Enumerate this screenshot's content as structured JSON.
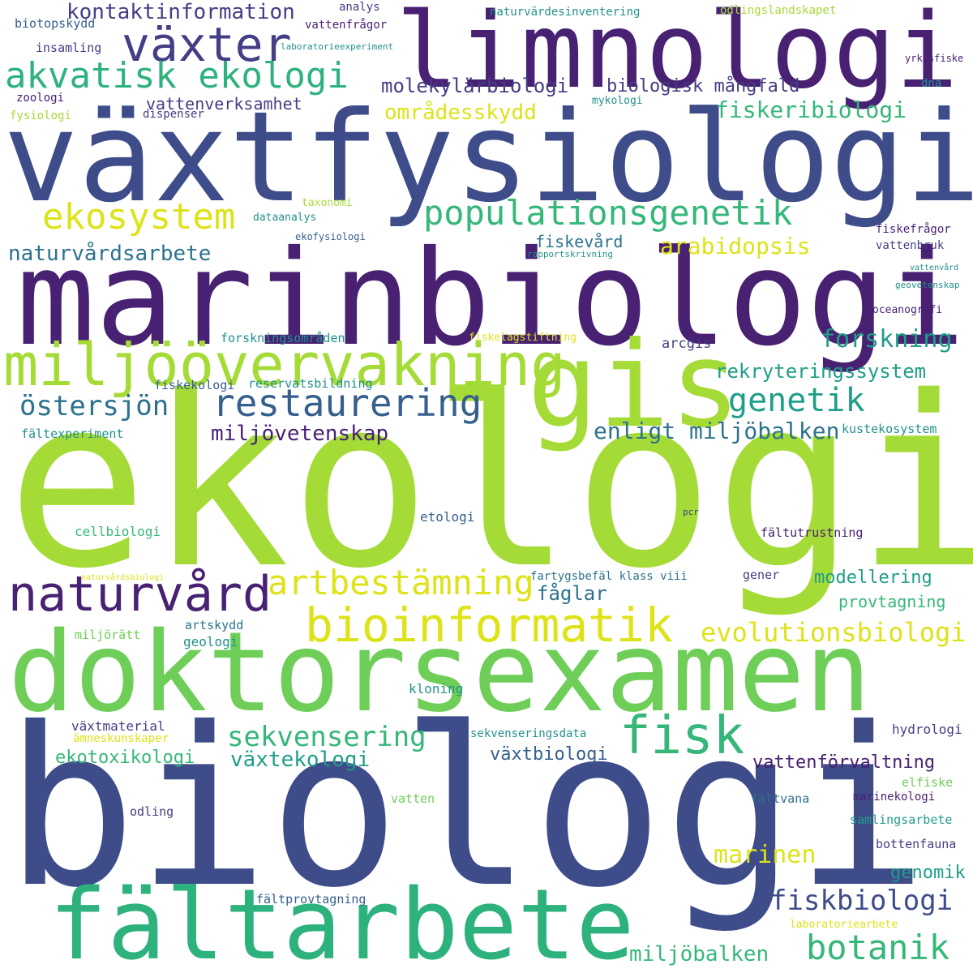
{
  "palette": {
    "dark_purple": "#482173",
    "indigo": "#433e85",
    "blue": "#3e4c8a",
    "slate": "#355f8d",
    "teal_blue": "#2c728e",
    "teal": "#21918c",
    "green_teal": "#1f9e89",
    "green": "#35b779",
    "sea_green": "#2db27d",
    "light_green": "#6ece58",
    "lime": "#a5db36",
    "yellow": "#dde318"
  },
  "words": [
    {
      "text": "ekologi",
      "color": "lime"
    },
    {
      "text": "biologi",
      "color": "blue"
    },
    {
      "text": "växtfysiologi",
      "color": "blue"
    },
    {
      "text": "marinbiologi",
      "color": "dark_purple"
    },
    {
      "text": "doktorsexamen",
      "color": "light_green"
    },
    {
      "text": "limnologi",
      "color": "dark_purple"
    },
    {
      "text": "fältarbete",
      "color": "sea_green"
    },
    {
      "text": "gis",
      "color": "lime"
    },
    {
      "text": "miljöövervakning",
      "color": "lime"
    },
    {
      "text": "växter",
      "color": "indigo"
    },
    {
      "text": "akvatisk ekologi",
      "color": "sea_green"
    },
    {
      "text": "naturvård",
      "color": "dark_purple"
    },
    {
      "text": "bioinformatik",
      "color": "yellow"
    },
    {
      "text": "ekosystem",
      "color": "yellow"
    },
    {
      "text": "populationsgenetik",
      "color": "green"
    },
    {
      "text": "restaurering",
      "color": "slate"
    },
    {
      "text": "fisk",
      "color": "green"
    },
    {
      "text": "artbestämning",
      "color": "yellow"
    },
    {
      "text": "botanik",
      "color": "green"
    },
    {
      "text": "fiskbiologi",
      "color": "blue"
    },
    {
      "text": "genetik",
      "color": "green_teal"
    },
    {
      "text": "evolutionsbiologi",
      "color": "yellow"
    },
    {
      "text": "östersjön",
      "color": "teal_blue"
    },
    {
      "text": "sekvensering",
      "color": "green"
    },
    {
      "text": "marinen",
      "color": "yellow"
    },
    {
      "text": "miljöbalken",
      "color": "green"
    },
    {
      "text": "forskning",
      "color": "green_teal"
    },
    {
      "text": "fiskeribiologi",
      "color": "green"
    },
    {
      "text": "enligt miljöbalken",
      "color": "teal_blue"
    },
    {
      "text": "naturvårdsarbete",
      "color": "teal_blue"
    },
    {
      "text": "kontaktinformation",
      "color": "indigo"
    },
    {
      "text": "molekylärbiologi",
      "color": "indigo"
    },
    {
      "text": "rekryteringssystem",
      "color": "green_teal"
    },
    {
      "text": "växtekologi",
      "color": "green_teal"
    },
    {
      "text": "miljövetenskap",
      "color": "dark_purple"
    },
    {
      "text": "arabidopsis",
      "color": "yellow"
    },
    {
      "text": "områdesskydd",
      "color": "yellow"
    },
    {
      "text": "fåglar",
      "color": "teal_blue"
    },
    {
      "text": "vattenförvaltning",
      "color": "dark_purple"
    },
    {
      "text": "ekotoxikologi",
      "color": "green"
    },
    {
      "text": "biologisk mångfald",
      "color": "indigo"
    },
    {
      "text": "modellering",
      "color": "green_teal"
    },
    {
      "text": "vattenverksamhet",
      "color": "indigo"
    },
    {
      "text": "växtbiologi",
      "color": "slate"
    },
    {
      "text": "genomik",
      "color": "green_teal"
    },
    {
      "text": "provtagning",
      "color": "green"
    },
    {
      "text": "fiskevård",
      "color": "teal_blue"
    },
    {
      "text": "fiskekologi",
      "color": "slate"
    },
    {
      "text": "arcgis",
      "color": "indigo"
    },
    {
      "text": "fältutrustning",
      "color": "dark_purple"
    },
    {
      "text": "forskningsområden",
      "color": "teal"
    },
    {
      "text": "reservatsbildning",
      "color": "teal"
    },
    {
      "text": "fältexperiment",
      "color": "teal"
    },
    {
      "text": "kustekosystem",
      "color": "teal"
    },
    {
      "text": "etologi",
      "color": "slate"
    },
    {
      "text": "cellbiologi",
      "color": "green"
    },
    {
      "text": "fartygsbefäl klass viii",
      "color": "teal_blue"
    },
    {
      "text": "gener",
      "color": "indigo"
    },
    {
      "text": "artskydd",
      "color": "teal_blue"
    },
    {
      "text": "geologi",
      "color": "teal"
    },
    {
      "text": "miljörätt",
      "color": "light_green"
    },
    {
      "text": "kloning",
      "color": "teal"
    },
    {
      "text": "växtmaterial",
      "color": "indigo"
    },
    {
      "text": "ämneskunskaper",
      "color": "yellow"
    },
    {
      "text": "sekvenseringsdata",
      "color": "teal"
    },
    {
      "text": "hydrologi",
      "color": "indigo"
    },
    {
      "text": "elfiske",
      "color": "light_green"
    },
    {
      "text": "marinekologi",
      "color": "dark_purple"
    },
    {
      "text": "fältvana",
      "color": "teal_blue"
    },
    {
      "text": "odling",
      "color": "indigo"
    },
    {
      "text": "vatten",
      "color": "light_green"
    },
    {
      "text": "samlingsarbete",
      "color": "green_teal"
    },
    {
      "text": "bottenfauna",
      "color": "indigo"
    },
    {
      "text": "fältprovtagning",
      "color": "slate"
    },
    {
      "text": "laboratoriearbete",
      "color": "yellow"
    },
    {
      "text": "biotopskydd",
      "color": "slate"
    },
    {
      "text": "insamling",
      "color": "indigo"
    },
    {
      "text": "zoologi",
      "color": "dark_purple"
    },
    {
      "text": "fysiologi",
      "color": "lime"
    },
    {
      "text": "dispenser",
      "color": "indigo"
    },
    {
      "text": "analys",
      "color": "indigo"
    },
    {
      "text": "vattenfrågor",
      "color": "dark_purple"
    },
    {
      "text": "laboratorieexperiment",
      "color": "teal"
    },
    {
      "text": "naturvärdesinventering",
      "color": "teal"
    },
    {
      "text": "odlingslandskapet",
      "color": "lime"
    },
    {
      "text": "yrkesfiske",
      "color": "dark_purple"
    },
    {
      "text": "dna",
      "color": "teal"
    },
    {
      "text": "mykologi",
      "color": "teal"
    },
    {
      "text": "taxonomi",
      "color": "lime"
    },
    {
      "text": "dataanalys",
      "color": "teal"
    },
    {
      "text": "ekofysiologi",
      "color": "slate"
    },
    {
      "text": "rapportskrivning",
      "color": "teal"
    },
    {
      "text": "fiskefrågor",
      "color": "dark_purple"
    },
    {
      "text": "vattenbruk",
      "color": "indigo"
    },
    {
      "text": "vattenvård",
      "color": "teal"
    },
    {
      "text": "geovetenskap",
      "color": "teal"
    },
    {
      "text": "oceanografi",
      "color": "dark_purple"
    },
    {
      "text": "fiskelagstiftning",
      "color": "yellow"
    },
    {
      "text": "pcr",
      "color": "indigo"
    },
    {
      "text": "naturvårdsbiologi",
      "color": "yellow"
    }
  ]
}
